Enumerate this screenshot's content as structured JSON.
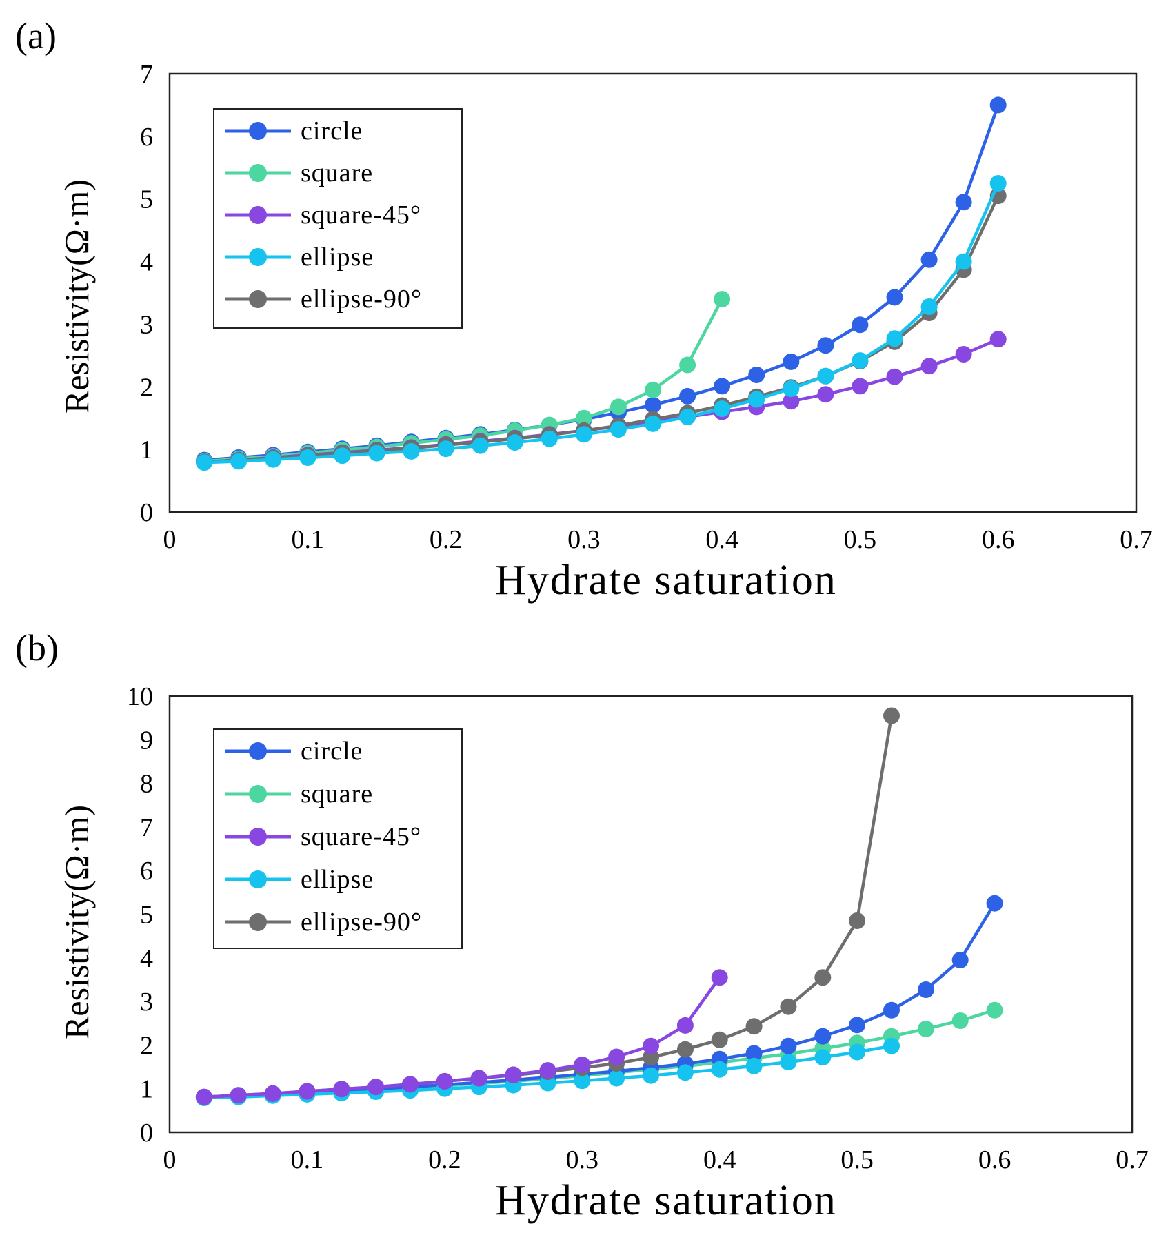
{
  "colors": {
    "circle": "#2d62e6",
    "square": "#4cd6a0",
    "square-45": "#8847e0",
    "ellipse": "#16c3ef",
    "ellipse-90": "#6e6e6e"
  },
  "chart_data": [
    {
      "panel_label": "(a)",
      "type": "line",
      "xlabel": "Hydrate  saturation",
      "ylabel": "Resistivity(Ω·m)",
      "xlim": [
        0,
        0.7
      ],
      "ylim": [
        0,
        7
      ],
      "xticks": [
        0,
        0.1,
        0.2,
        0.3,
        0.4,
        0.5,
        0.6,
        0.7
      ],
      "xtick_labels": [
        "0",
        "0.1",
        "0.2",
        "0.3",
        "0.4",
        "0.5",
        "0.6",
        "0.7"
      ],
      "yticks": [
        0,
        1,
        2,
        3,
        4,
        5,
        6,
        7
      ],
      "ytick_labels": [
        "0",
        "1",
        "2",
        "3",
        "4",
        "5",
        "6",
        "7"
      ],
      "legend": "top-left",
      "series": [
        {
          "name": "circle",
          "color_key": "circle",
          "x": [
            0.025,
            0.05,
            0.075,
            0.1,
            0.125,
            0.15,
            0.175,
            0.2,
            0.225,
            0.25,
            0.275,
            0.3,
            0.325,
            0.35,
            0.375,
            0.4,
            0.425,
            0.45,
            0.475,
            0.5,
            0.525,
            0.55,
            0.575,
            0.6
          ],
          "y": [
            0.83,
            0.87,
            0.91,
            0.96,
            1.01,
            1.06,
            1.12,
            1.18,
            1.24,
            1.31,
            1.39,
            1.48,
            1.59,
            1.71,
            1.85,
            2.01,
            2.19,
            2.4,
            2.66,
            2.99,
            3.43,
            4.03,
            4.95,
            6.5
          ]
        },
        {
          "name": "square",
          "color_key": "square",
          "x": [
            0.025,
            0.05,
            0.075,
            0.1,
            0.125,
            0.15,
            0.175,
            0.2,
            0.225,
            0.25,
            0.275,
            0.3,
            0.325,
            0.35,
            0.375,
            0.4
          ],
          "y": [
            0.81,
            0.85,
            0.89,
            0.94,
            0.99,
            1.04,
            1.1,
            1.16,
            1.22,
            1.3,
            1.39,
            1.5,
            1.68,
            1.95,
            2.35,
            3.4
          ]
        },
        {
          "name": "square-45°",
          "color_key": "square-45",
          "x": [
            0.025,
            0.05,
            0.075,
            0.1,
            0.125,
            0.15,
            0.175,
            0.2,
            0.225,
            0.25,
            0.275,
            0.3,
            0.325,
            0.35,
            0.375,
            0.4,
            0.425,
            0.45,
            0.475,
            0.5,
            0.525,
            0.55,
            0.575,
            0.6
          ],
          "y": [
            0.8,
            0.83,
            0.87,
            0.91,
            0.95,
            0.99,
            1.03,
            1.08,
            1.13,
            1.18,
            1.24,
            1.3,
            1.37,
            1.45,
            1.52,
            1.6,
            1.68,
            1.77,
            1.88,
            2.01,
            2.16,
            2.33,
            2.52,
            2.76
          ]
        },
        {
          "name": "ellipse-90°",
          "color_key": "ellipse-90",
          "x": [
            0.025,
            0.05,
            0.075,
            0.1,
            0.125,
            0.15,
            0.175,
            0.2,
            0.225,
            0.25,
            0.275,
            0.3,
            0.325,
            0.35,
            0.375,
            0.4,
            0.425,
            0.45,
            0.475,
            0.5,
            0.525,
            0.55,
            0.575,
            0.6
          ],
          "y": [
            0.8,
            0.83,
            0.86,
            0.9,
            0.94,
            0.98,
            1.02,
            1.07,
            1.12,
            1.17,
            1.23,
            1.3,
            1.38,
            1.48,
            1.58,
            1.7,
            1.84,
            1.99,
            2.17,
            2.41,
            2.72,
            3.18,
            3.87,
            5.05
          ]
        },
        {
          "name": "ellipse",
          "color_key": "ellipse",
          "x": [
            0.025,
            0.05,
            0.075,
            0.1,
            0.125,
            0.15,
            0.175,
            0.2,
            0.225,
            0.25,
            0.275,
            0.3,
            0.325,
            0.35,
            0.375,
            0.4,
            0.425,
            0.45,
            0.475,
            0.5,
            0.525,
            0.55,
            0.575,
            0.6
          ],
          "y": [
            0.79,
            0.81,
            0.84,
            0.87,
            0.9,
            0.94,
            0.97,
            1.01,
            1.06,
            1.11,
            1.17,
            1.24,
            1.32,
            1.41,
            1.52,
            1.65,
            1.8,
            1.97,
            2.17,
            2.42,
            2.77,
            3.28,
            4.0,
            5.25
          ]
        }
      ],
      "legend_order": [
        "circle",
        "square",
        "square-45°",
        "ellipse",
        "ellipse-90°"
      ]
    },
    {
      "panel_label": "(b)",
      "type": "line",
      "xlabel": "Hydrate  saturation",
      "ylabel": "Resistivity(Ω·m)",
      "xlim": [
        0,
        0.7
      ],
      "ylim": [
        0,
        10
      ],
      "xticks": [
        0,
        0.1,
        0.2,
        0.3,
        0.4,
        0.5,
        0.6,
        0.7
      ],
      "xtick_labels": [
        "0",
        "0.1",
        "0.2",
        "0.3",
        "0.4",
        "0.5",
        "0.6",
        "0.7"
      ],
      "yticks": [
        0,
        1,
        2,
        3,
        4,
        5,
        6,
        7,
        8,
        9,
        10
      ],
      "ytick_labels": [
        "0",
        "1",
        "2",
        "3",
        "4",
        "5",
        "6",
        "7",
        "8",
        "9",
        "10"
      ],
      "legend": "top-left",
      "series": [
        {
          "name": "square",
          "color_key": "square",
          "x": [
            0.025,
            0.05,
            0.075,
            0.1,
            0.125,
            0.15,
            0.175,
            0.2,
            0.225,
            0.25,
            0.275,
            0.3,
            0.325,
            0.35,
            0.375,
            0.4,
            0.425,
            0.45,
            0.475,
            0.5,
            0.525,
            0.55,
            0.575,
            0.6
          ],
          "y": [
            0.8,
            0.83,
            0.86,
            0.9,
            0.94,
            0.98,
            1.02,
            1.07,
            1.12,
            1.17,
            1.23,
            1.3,
            1.37,
            1.44,
            1.52,
            1.6,
            1.7,
            1.8,
            1.92,
            2.05,
            2.2,
            2.37,
            2.56,
            2.8
          ]
        },
        {
          "name": "circle",
          "color_key": "circle",
          "x": [
            0.025,
            0.05,
            0.075,
            0.1,
            0.125,
            0.15,
            0.175,
            0.2,
            0.225,
            0.25,
            0.275,
            0.3,
            0.325,
            0.35,
            0.375,
            0.4,
            0.425,
            0.45,
            0.475,
            0.5,
            0.525,
            0.55,
            0.575,
            0.6
          ],
          "y": [
            0.81,
            0.84,
            0.87,
            0.91,
            0.95,
            0.99,
            1.04,
            1.09,
            1.14,
            1.2,
            1.26,
            1.33,
            1.4,
            1.48,
            1.57,
            1.68,
            1.81,
            1.98,
            2.2,
            2.46,
            2.8,
            3.27,
            3.95,
            5.25
          ]
        },
        {
          "name": "ellipse",
          "color_key": "ellipse",
          "x": [
            0.025,
            0.05,
            0.075,
            0.1,
            0.125,
            0.15,
            0.175,
            0.2,
            0.225,
            0.25,
            0.275,
            0.3,
            0.325,
            0.35,
            0.375,
            0.4,
            0.425,
            0.45,
            0.475,
            0.5,
            0.525
          ],
          "y": [
            0.79,
            0.81,
            0.84,
            0.87,
            0.9,
            0.93,
            0.96,
            1.0,
            1.04,
            1.08,
            1.13,
            1.18,
            1.24,
            1.3,
            1.37,
            1.44,
            1.52,
            1.61,
            1.72,
            1.84,
            1.98
          ]
        },
        {
          "name": "ellipse-90°",
          "color_key": "ellipse-90",
          "x": [
            0.025,
            0.05,
            0.075,
            0.1,
            0.125,
            0.15,
            0.175,
            0.2,
            0.225,
            0.25,
            0.275,
            0.3,
            0.325,
            0.35,
            0.375,
            0.4,
            0.425,
            0.45,
            0.475,
            0.5,
            0.525
          ],
          "y": [
            0.81,
            0.85,
            0.89,
            0.94,
            0.99,
            1.04,
            1.1,
            1.17,
            1.24,
            1.31,
            1.39,
            1.48,
            1.58,
            1.72,
            1.9,
            2.12,
            2.43,
            2.88,
            3.55,
            4.85,
            9.55
          ]
        },
        {
          "name": "square-45°",
          "color_key": "square-45",
          "x": [
            0.025,
            0.05,
            0.075,
            0.1,
            0.125,
            0.15,
            0.175,
            0.2,
            0.225,
            0.25,
            0.275,
            0.3,
            0.325,
            0.35,
            0.375,
            0.4
          ],
          "y": [
            0.81,
            0.85,
            0.89,
            0.94,
            0.99,
            1.04,
            1.1,
            1.17,
            1.24,
            1.32,
            1.42,
            1.55,
            1.73,
            1.98,
            2.45,
            3.55
          ]
        }
      ],
      "legend_order": [
        "circle",
        "square",
        "square-45°",
        "ellipse",
        "ellipse-90°"
      ]
    }
  ]
}
